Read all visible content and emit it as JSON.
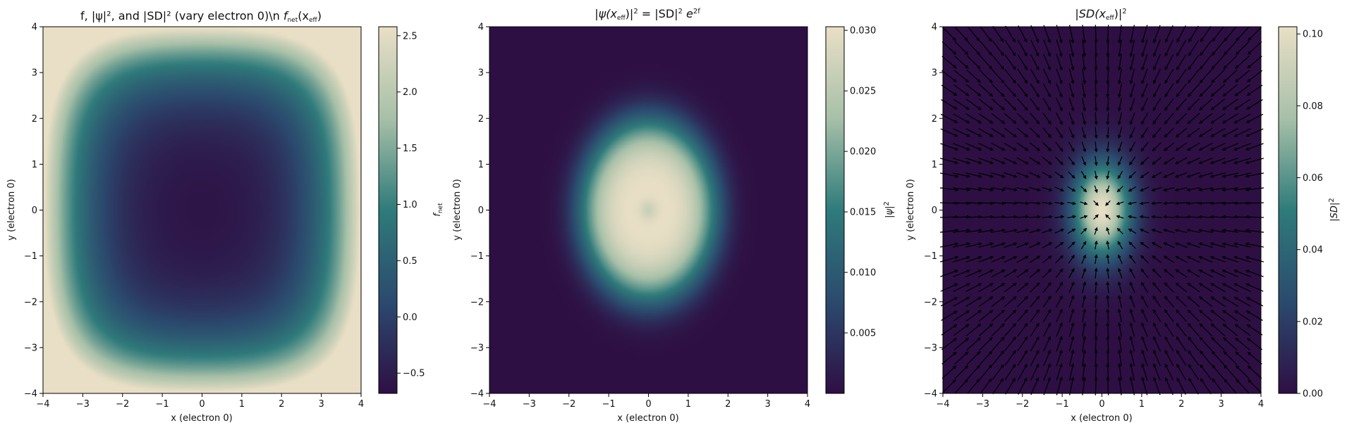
{
  "chart_data": [
    {
      "type": "heatmap",
      "title_text": "f, |ψ|², and |SD|² (vary electron 0)\\n ",
      "title_math": "f",
      "title_math_sub": "net",
      "title_math_arg": "(x",
      "title_math_arg_sub": "eff",
      "title_math_close": ")",
      "xlabel": "x (electron 0)",
      "ylabel": "y (electron 0)",
      "xlim": [
        -4,
        4
      ],
      "ylim": [
        -4,
        4
      ],
      "xticks": [
        -4,
        -3,
        -2,
        -1,
        0,
        1,
        2,
        3,
        4
      ],
      "yticks": [
        -4,
        -3,
        -2,
        -1,
        0,
        1,
        2,
        3,
        4
      ],
      "colorbar_label_main": "f",
      "colorbar_label_sub": "net",
      "colorbar_range": [
        -0.68,
        2.58
      ],
      "colorbar_ticks": [
        "-0.5",
        "0.0",
        "0.5",
        "1.0",
        "1.5",
        "2.0",
        "2.5"
      ],
      "colorbar_tick_values": [
        -0.5,
        0.0,
        0.5,
        1.0,
        1.5,
        2.0,
        2.5
      ]
    },
    {
      "type": "heatmap",
      "title_parts": [
        "|ψ(x",
        "eff",
        ")|",
        "2",
        " = |SD|",
        "2",
        " e",
        "2f"
      ],
      "xlabel": "x (electron 0)",
      "ylabel": "y (electron 0)",
      "xlim": [
        -4,
        4
      ],
      "ylim": [
        -4,
        4
      ],
      "xticks": [
        -4,
        -3,
        -2,
        -1,
        0,
        1,
        2,
        3,
        4
      ],
      "yticks": [
        -4,
        -3,
        -2,
        -1,
        0,
        1,
        2,
        3,
        4
      ],
      "colorbar_label_main": "|ψ|",
      "colorbar_label_sup": "2",
      "colorbar_range": [
        0.0,
        0.0303
      ],
      "colorbar_ticks": [
        "0.005",
        "0.010",
        "0.015",
        "0.020",
        "0.025",
        "0.030"
      ],
      "colorbar_tick_values": [
        0.005,
        0.01,
        0.015,
        0.02,
        0.025,
        0.03
      ]
    },
    {
      "type": "heatmap",
      "title_parts": [
        "|SD(x",
        "eff",
        ")|",
        "2"
      ],
      "overlay": "quiver",
      "xlabel": "x (electron 0)",
      "ylabel": "y (electron 0)",
      "xlim": [
        -4,
        4
      ],
      "ylim": [
        -4,
        4
      ],
      "xticks": [
        -4,
        -3,
        -2,
        -1,
        0,
        1,
        2,
        3,
        4
      ],
      "yticks": [
        -4,
        -3,
        -2,
        -1,
        0,
        1,
        2,
        3,
        4
      ],
      "colorbar_label_main": "|SD|",
      "colorbar_label_sup": "2",
      "colorbar_range": [
        0.0,
        0.102
      ],
      "colorbar_ticks": [
        "0.00",
        "0.02",
        "0.04",
        "0.06",
        "0.08",
        "0.10"
      ],
      "colorbar_tick_values": [
        0.0,
        0.02,
        0.04,
        0.06,
        0.08,
        0.1
      ]
    }
  ],
  "colormap": [
    "#2e0f44",
    "#2b4a6e",
    "#2f7b7b",
    "#a7c0a8",
    "#e9dfc6"
  ]
}
